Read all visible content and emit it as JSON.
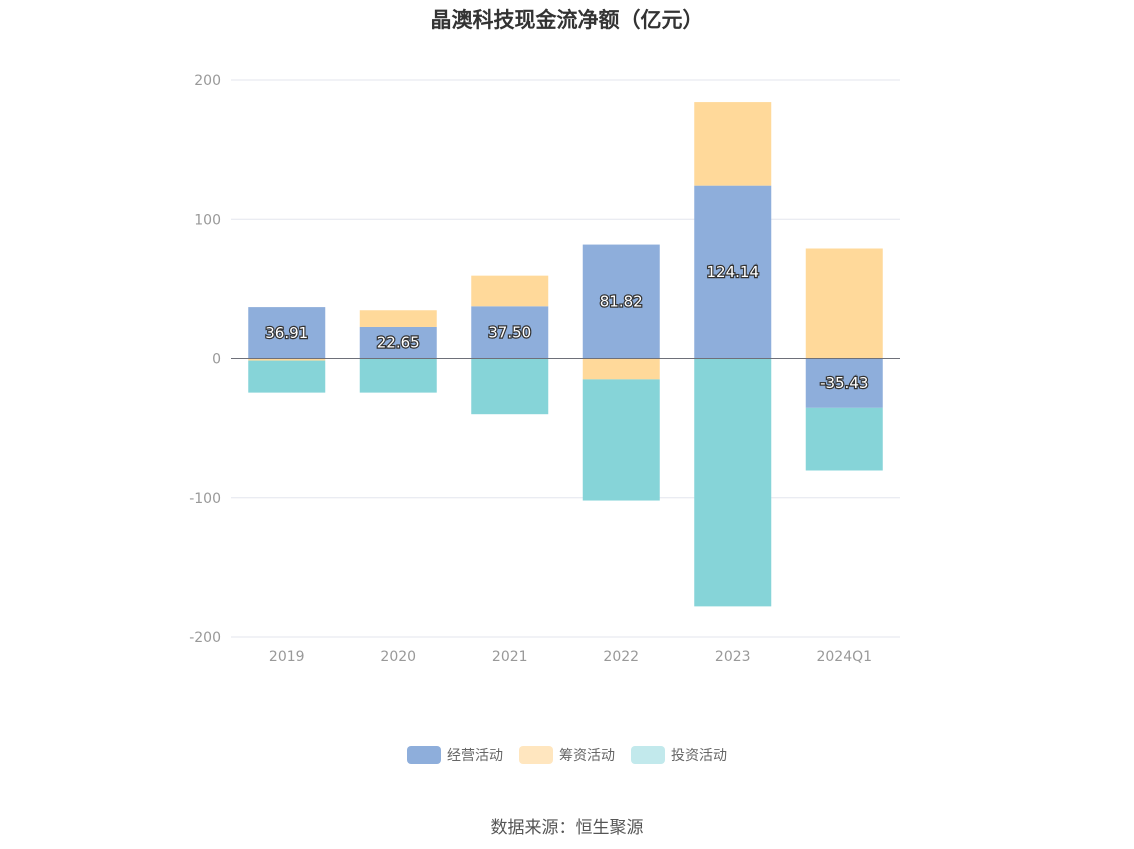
{
  "chart_data": {
    "type": "bar",
    "stacked": true,
    "title": "晶澳科技现金流净额（亿元）",
    "categories": [
      "2019",
      "2020",
      "2021",
      "2022",
      "2023",
      "2024Q1"
    ],
    "ylim": [
      -200,
      200
    ],
    "yticks": [
      200,
      100,
      0,
      -100,
      -200
    ],
    "grid": true,
    "legend_position": "bottom",
    "series": [
      {
        "name": "经营活动",
        "color": "#8eaedb",
        "values": [
          36.91,
          22.65,
          37.5,
          81.82,
          124.14,
          -35.43
        ]
      },
      {
        "name": "筹资活动",
        "color": "#ffd99a",
        "values": [
          -1.5,
          12.0,
          22.0,
          -15.0,
          60.0,
          79.0
        ]
      },
      {
        "name": "投资活动",
        "color": "#86d4d8",
        "values": [
          -23.0,
          -24.5,
          -40.0,
          -87.0,
          -178.0,
          -45.0
        ]
      }
    ],
    "data_labels": [
      "36.91",
      "22.65",
      "37.50",
      "81.82",
      "124.14",
      "-35.43"
    ],
    "legend_colors": [
      "#8eaedb",
      "#ffe6bf",
      "#c2e9ec"
    ]
  },
  "source_text": "数据来源：恒生聚源"
}
